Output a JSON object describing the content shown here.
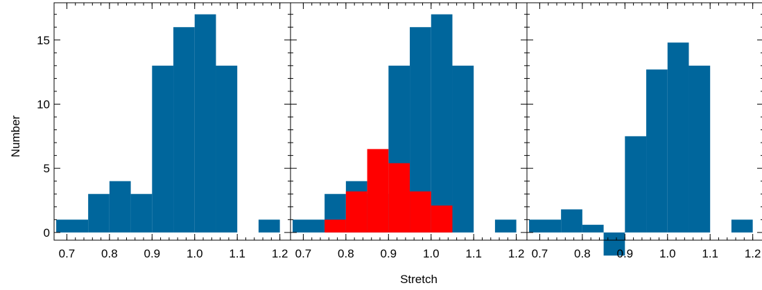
{
  "chart_data": {
    "type": "bar",
    "xlabel": "Stretch",
    "ylabel": "Number",
    "xlim": [
      0.67,
      1.225
    ],
    "ylim": [
      -0.6,
      17.9
    ],
    "xticks": [
      0.7,
      0.8,
      0.9,
      1.0,
      1.1,
      1.2
    ],
    "xtick_labels": [
      "0.7",
      "0.8",
      "0.9",
      "1.0",
      "1.1",
      "1.2"
    ],
    "yticks": [
      0,
      5,
      10,
      15
    ],
    "ytick_labels": [
      "0",
      "5",
      "10",
      "15"
    ],
    "bin_width": 0.05,
    "colors": {
      "primary": "#00669c",
      "highlight": "#ff0000"
    },
    "panels": [
      {
        "series": [
          {
            "color": "#00669c",
            "bins": [
              {
                "x0": 0.675,
                "x1": 0.75,
                "value": 1
              },
              {
                "x0": 0.75,
                "x1": 0.8,
                "value": 3
              },
              {
                "x0": 0.8,
                "x1": 0.85,
                "value": 4
              },
              {
                "x0": 0.85,
                "x1": 0.9,
                "value": 3
              },
              {
                "x0": 0.9,
                "x1": 0.95,
                "value": 13
              },
              {
                "x0": 0.95,
                "x1": 1.0,
                "value": 16
              },
              {
                "x0": 1.0,
                "x1": 1.05,
                "value": 17
              },
              {
                "x0": 1.05,
                "x1": 1.1,
                "value": 13
              },
              {
                "x0": 1.15,
                "x1": 1.2,
                "value": 1
              }
            ]
          }
        ]
      },
      {
        "series": [
          {
            "color": "#00669c",
            "bins": [
              {
                "x0": 0.675,
                "x1": 0.75,
                "value": 1
              },
              {
                "x0": 0.75,
                "x1": 0.8,
                "value": 3
              },
              {
                "x0": 0.8,
                "x1": 0.85,
                "value": 4
              },
              {
                "x0": 0.85,
                "x1": 0.9,
                "value": 3
              },
              {
                "x0": 0.9,
                "x1": 0.95,
                "value": 13
              },
              {
                "x0": 0.95,
                "x1": 1.0,
                "value": 16
              },
              {
                "x0": 1.0,
                "x1": 1.05,
                "value": 17
              },
              {
                "x0": 1.05,
                "x1": 1.1,
                "value": 13
              },
              {
                "x0": 1.15,
                "x1": 1.2,
                "value": 1
              }
            ]
          },
          {
            "color": "#ff0000",
            "bins": [
              {
                "x0": 0.75,
                "x1": 0.8,
                "value": 1
              },
              {
                "x0": 0.8,
                "x1": 0.85,
                "value": 3.2
              },
              {
                "x0": 0.85,
                "x1": 0.9,
                "value": 6.5
              },
              {
                "x0": 0.9,
                "x1": 0.95,
                "value": 5.4
              },
              {
                "x0": 0.95,
                "x1": 1.0,
                "value": 3.2
              },
              {
                "x0": 1.0,
                "x1": 1.05,
                "value": 2.1
              }
            ]
          }
        ]
      },
      {
        "series": [
          {
            "color": "#00669c",
            "bins": [
              {
                "x0": 0.675,
                "x1": 0.75,
                "value": 1
              },
              {
                "x0": 0.75,
                "x1": 0.8,
                "value": 1.8
              },
              {
                "x0": 0.8,
                "x1": 0.85,
                "value": 0.6
              },
              {
                "x0": 0.85,
                "x1": 0.9,
                "value": -1.8
              },
              {
                "x0": 0.9,
                "x1": 0.95,
                "value": 7.5
              },
              {
                "x0": 0.95,
                "x1": 1.0,
                "value": 12.7
              },
              {
                "x0": 1.0,
                "x1": 1.05,
                "value": 14.8
              },
              {
                "x0": 1.05,
                "x1": 1.1,
                "value": 13
              },
              {
                "x0": 1.15,
                "x1": 1.2,
                "value": 1
              }
            ]
          }
        ]
      }
    ]
  }
}
